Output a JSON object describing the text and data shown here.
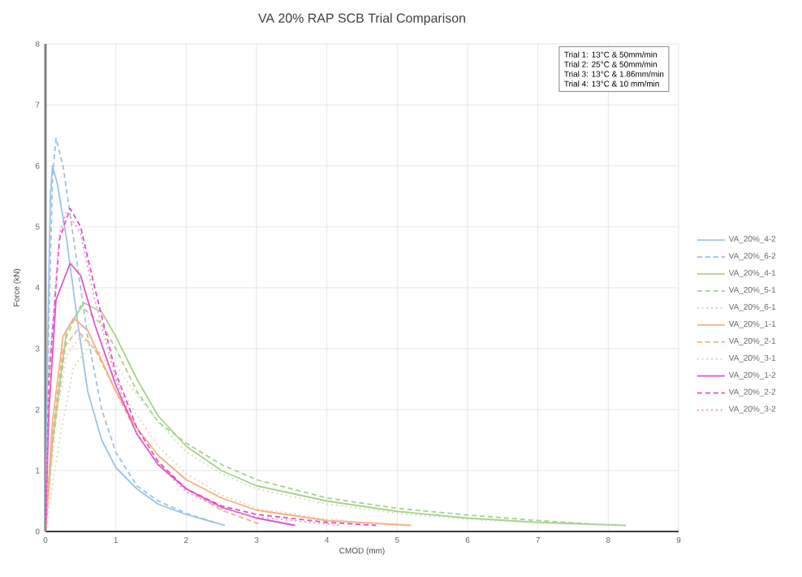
{
  "chart_data": {
    "type": "line",
    "title": "VA 20% RAP SCB Trial Comparison",
    "xlabel": "CMOD (mm)",
    "ylabel": "Force (kN)",
    "xlim": [
      0,
      9
    ],
    "ylim": [
      0,
      8
    ],
    "xticks": [
      0,
      1,
      2,
      3,
      4,
      5,
      6,
      7,
      8,
      9
    ],
    "yticks": [
      0,
      1,
      2,
      3,
      4,
      5,
      6,
      7,
      8
    ],
    "grid": true,
    "legend": "right",
    "annotations": [
      "Trial 1: 13°C & 50mm/min",
      "Trial 2: 25°C & 50mm/min",
      "Trial 3: 13°C & 1.86mm/min",
      "Trial 4: 13°C & 10 mm/min"
    ],
    "series": [
      {
        "name": "VA_20%_4-2",
        "color": "#9dc3e6",
        "line_style": "solid",
        "x": [
          0,
          0.03,
          0.07,
          0.1,
          0.17,
          0.3,
          0.45,
          0.6,
          0.8,
          1.0,
          1.3,
          1.6,
          2.0,
          2.55
        ],
        "values": [
          0,
          3,
          5.5,
          6.0,
          5.7,
          4.8,
          3.5,
          2.3,
          1.5,
          1.05,
          0.7,
          0.45,
          0.28,
          0.1
        ]
      },
      {
        "name": "VA_20%_6-2",
        "color": "#9dc3e6",
        "line_style": "dashed",
        "x": [
          0,
          0.05,
          0.1,
          0.15,
          0.25,
          0.4,
          0.6,
          0.8,
          1.0,
          1.3,
          1.6,
          2.0,
          2.4
        ],
        "values": [
          0,
          3.5,
          5.8,
          6.45,
          6.0,
          4.8,
          3.2,
          2.0,
          1.3,
          0.75,
          0.5,
          0.3,
          0.15
        ]
      },
      {
        "name": "VA_20%_4-1",
        "color": "#a9d18e",
        "line_style": "solid",
        "x": [
          0,
          0.1,
          0.3,
          0.55,
          0.8,
          1.0,
          1.3,
          1.6,
          2.0,
          2.5,
          3,
          4,
          5,
          6,
          7,
          8.25
        ],
        "values": [
          0,
          1.5,
          3.3,
          3.75,
          3.6,
          3.2,
          2.5,
          1.9,
          1.4,
          1.0,
          0.75,
          0.5,
          0.33,
          0.22,
          0.15,
          0.1
        ]
      },
      {
        "name": "VA_20%_5-1",
        "color": "#a9d18e",
        "line_style": "dashed",
        "x": [
          0,
          0.1,
          0.3,
          0.5,
          0.8,
          1.0,
          1.3,
          1.6,
          2.0,
          2.5,
          3,
          4,
          5,
          6,
          7,
          7.8
        ],
        "values": [
          0,
          1.4,
          3.2,
          3.7,
          3.4,
          3.0,
          2.3,
          1.8,
          1.45,
          1.1,
          0.85,
          0.55,
          0.38,
          0.27,
          0.18,
          0.12
        ]
      },
      {
        "name": "VA_20%_6-1",
        "color": "#c5e0b4",
        "line_style": "dotted",
        "x": [
          0,
          0.2,
          0.4,
          0.6,
          0.9,
          1.2,
          1.6,
          2,
          2.5,
          3,
          4,
          5,
          6,
          7,
          8
        ],
        "values": [
          0,
          1.5,
          2.7,
          3.0,
          2.9,
          2.4,
          1.8,
          1.3,
          0.95,
          0.7,
          0.45,
          0.3,
          0.2,
          0.14,
          0.1
        ]
      },
      {
        "name": "VA_20%_1-1",
        "color": "#f4b183",
        "line_style": "solid",
        "x": [
          0,
          0.1,
          0.25,
          0.4,
          0.6,
          0.8,
          1.0,
          1.3,
          1.6,
          2,
          2.5,
          3,
          4,
          5.2
        ],
        "values": [
          0,
          1.8,
          3.2,
          3.5,
          3.3,
          2.8,
          2.3,
          1.7,
          1.25,
          0.85,
          0.55,
          0.35,
          0.18,
          0.1
        ]
      },
      {
        "name": "VA_20%_2-1",
        "color": "#f4b183",
        "line_style": "dashed",
        "x": [
          0,
          0.1,
          0.25,
          0.45,
          0.7,
          1.0,
          1.3,
          1.6,
          2,
          2.5,
          3.05
        ],
        "values": [
          0,
          1.6,
          3.0,
          3.3,
          3.0,
          2.3,
          1.6,
          1.1,
          0.7,
          0.35,
          0.12
        ]
      },
      {
        "name": "VA_20%_3-1",
        "color": "#f8cbad",
        "line_style": "dotted",
        "x": [
          0,
          0.15,
          0.3,
          0.5,
          0.8,
          1.0,
          1.3,
          1.6,
          2,
          2.5,
          3,
          4,
          4.8
        ],
        "values": [
          0,
          1.8,
          2.9,
          3.2,
          2.9,
          2.5,
          1.9,
          1.4,
          0.95,
          0.6,
          0.38,
          0.2,
          0.12
        ]
      },
      {
        "name": "VA_20%_1-2",
        "color": "#e055c8",
        "line_style": "solid",
        "x": [
          0,
          0.05,
          0.15,
          0.35,
          0.5,
          0.7,
          1.0,
          1.3,
          1.6,
          2,
          2.5,
          3,
          3.55
        ],
        "values": [
          0,
          2,
          3.8,
          4.4,
          4.2,
          3.4,
          2.4,
          1.6,
          1.1,
          0.7,
          0.4,
          0.22,
          0.1
        ]
      },
      {
        "name": "VA_20%_2-2",
        "color": "#e64ec4",
        "line_style": "dashed",
        "x": [
          0,
          0.05,
          0.2,
          0.35,
          0.5,
          0.7,
          1.0,
          1.3,
          1.6,
          2,
          2.5,
          3,
          4,
          4.7
        ],
        "values": [
          0,
          2.5,
          4.8,
          5.3,
          5.0,
          4.0,
          2.6,
          1.7,
          1.15,
          0.7,
          0.42,
          0.28,
          0.15,
          0.1
        ]
      },
      {
        "name": "VA_20%_3-2",
        "color": "#ec86d6",
        "line_style": "dotted",
        "x": [
          0,
          0.05,
          0.2,
          0.3,
          0.5,
          0.7,
          1.0,
          1.3,
          1.6,
          2,
          2.5,
          3,
          4.2
        ],
        "values": [
          0,
          2.6,
          4.9,
          5.25,
          4.9,
          3.8,
          2.5,
          1.6,
          1.1,
          0.65,
          0.38,
          0.24,
          0.1
        ]
      }
    ]
  }
}
